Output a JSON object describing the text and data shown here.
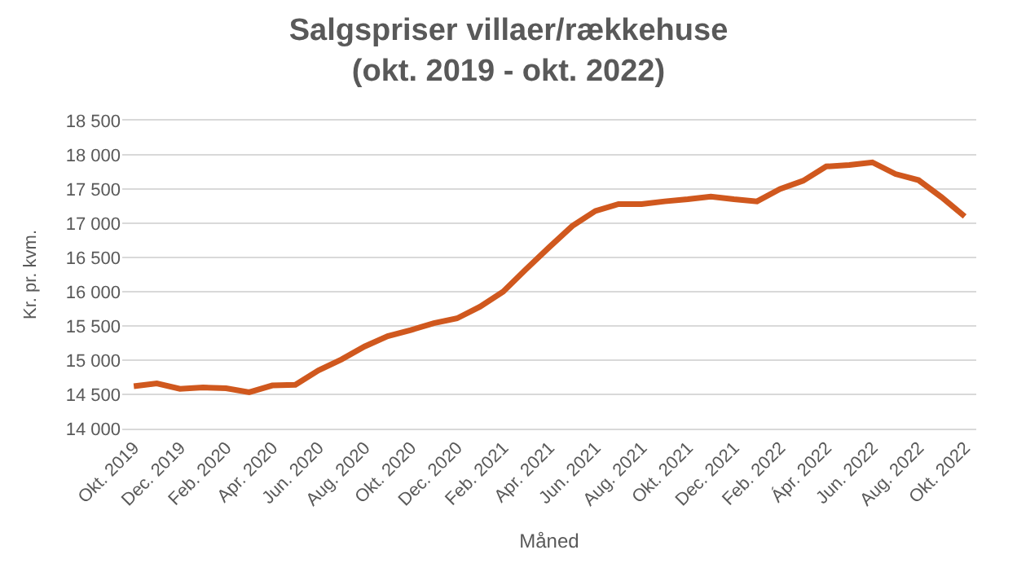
{
  "chart_data": {
    "type": "line",
    "title": "Salgspriser villaer/rækkehuse",
    "subtitle": "(okt. 2019 - okt. 2022)",
    "xlabel": "Måned",
    "ylabel": "Kr. pr. kvm.",
    "categories": [
      "Okt. 2019",
      null,
      "Dec. 2019",
      null,
      "Feb. 2020",
      null,
      "Apr. 2020",
      null,
      "Jun. 2020",
      null,
      "Aug. 2020",
      null,
      "Okt. 2020",
      null,
      "Dec. 2020",
      null,
      "Feb. 2021",
      null,
      "Apr. 2021",
      null,
      "Jun. 2021",
      null,
      "Aug. 2021",
      null,
      "Okt. 2021",
      null,
      "Dec. 2021",
      null,
      "Feb. 2022",
      null,
      "Ápr. 2022",
      null,
      "Jun. 2022",
      null,
      "Aug. 2022",
      null,
      "Okt. 2022"
    ],
    "series": [
      {
        "color": "#d0581e",
        "values": [
          14620,
          14660,
          14580,
          14600,
          14590,
          14530,
          14630,
          14640,
          14850,
          15010,
          15200,
          15350,
          15440,
          15540,
          15610,
          15780,
          16000,
          16330,
          16650,
          16960,
          17180,
          17280,
          17280,
          17320,
          17350,
          17390,
          17350,
          17320,
          17500,
          17620,
          17830,
          17850,
          17890,
          17720,
          17630,
          17380,
          17100
        ]
      }
    ],
    "ylim": [
      14000,
      18500
    ],
    "yticks": [
      {
        "value": 14000,
        "label": "14 000"
      },
      {
        "value": 14500,
        "label": "14 500"
      },
      {
        "value": 15000,
        "label": "15 000"
      },
      {
        "value": 15500,
        "label": "15 500"
      },
      {
        "value": 16000,
        "label": "16 000"
      },
      {
        "value": 16500,
        "label": "16 500"
      },
      {
        "value": 17000,
        "label": "17 000"
      },
      {
        "value": 17500,
        "label": "17 500"
      },
      {
        "value": 18000,
        "label": "18 000"
      },
      {
        "value": 18500,
        "label": "18 500"
      }
    ],
    "grid": "y",
    "marker": "none",
    "line_style": "solid"
  }
}
